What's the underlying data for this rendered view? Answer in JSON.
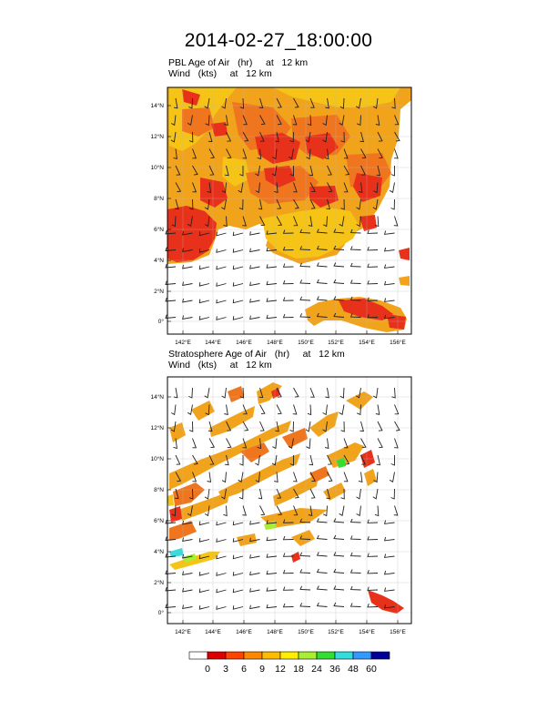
{
  "title": "2014-02-27_18:00:00",
  "panels": [
    {
      "id": "pbl",
      "title_line1": "PBL Age of Air   (hr)     at   12 km",
      "title_line2": "Wind   (kts)     at   12 km",
      "lon_ticks": [
        "142°E",
        "144°E",
        "146°E",
        "148°E",
        "150°E",
        "152°E",
        "154°E",
        "156°E"
      ],
      "lat_ticks": [
        "14°N",
        "12°N",
        "10°N",
        "8°N",
        "6°N",
        "4°N",
        "2°N",
        "0°"
      ]
    },
    {
      "id": "strat",
      "title_line1": "Stratosphere Age of Air   (hr)     at   12 km",
      "title_line2": "Wind   (kts)     at   12 km",
      "lon_ticks": [
        "142°E",
        "144°E",
        "146°E",
        "148°E",
        "150°E",
        "152°E",
        "154°E",
        "156°E"
      ],
      "lat_ticks": [
        "14°N",
        "12°N",
        "10°N",
        "8°N",
        "6°N",
        "4°N",
        "2°N",
        "0°"
      ]
    }
  ],
  "colorbar": {
    "labels": [
      "0",
      "3",
      "6",
      "9",
      "12",
      "18",
      "24",
      "36",
      "48",
      "60"
    ],
    "colors": [
      "#ffffff",
      "#dd0000",
      "#ff4400",
      "#ff8800",
      "#ffbb00",
      "#ffee00",
      "#aaee33",
      "#33dd33",
      "#33dddd",
      "#3399ff",
      "#000099"
    ]
  },
  "palette": {
    "red": "#e8311a",
    "orange": "#f0751f",
    "amber": "#f2a31c",
    "yellow": "#f5c416"
  }
}
